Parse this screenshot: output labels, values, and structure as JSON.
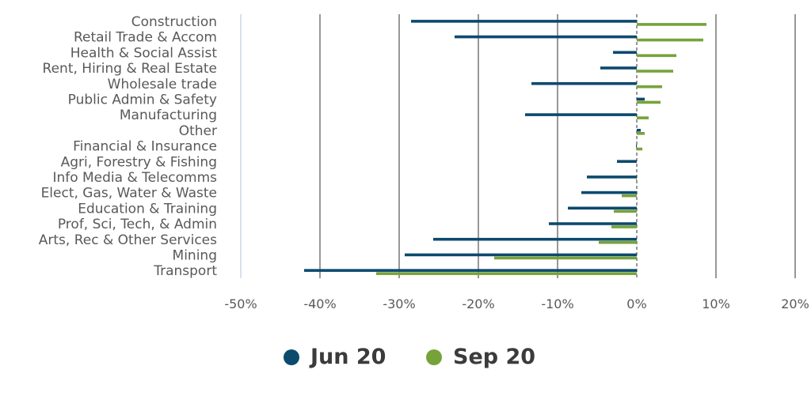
{
  "chart_data": {
    "type": "bar",
    "orientation": "horizontal",
    "categories": [
      "Construction",
      "Retail Trade & Accom",
      "Health & Social Assist",
      "Rent, Hiring & Real Estate",
      "Wholesale trade",
      "Public Admin & Safety",
      "Manufacturing",
      "Other",
      "Financial & Insurance",
      "Agri, Forestry & Fishing",
      "Info Media & Telecomms",
      "Elect, Gas, Water & Waste",
      "Education & Training",
      "Prof, Sci, Tech, & Admin",
      "Arts, Rec & Other Services",
      "Mining",
      "Transport"
    ],
    "series": [
      {
        "name": "Jun 20",
        "color": "#0c4a6e",
        "values": [
          -28.5,
          -23.0,
          -3.0,
          -4.6,
          -13.3,
          1.0,
          -14.1,
          0.5,
          -0.1,
          -2.5,
          -6.3,
          -7.0,
          -8.7,
          -11.1,
          -25.7,
          -29.3,
          -42.0
        ]
      },
      {
        "name": "Sep 20",
        "color": "#76a339",
        "values": [
          8.8,
          8.4,
          5.0,
          4.6,
          3.2,
          3.0,
          1.5,
          1.0,
          0.7,
          0.0,
          -0.1,
          -1.9,
          -2.9,
          -3.2,
          -4.8,
          -18.0,
          -32.9
        ]
      }
    ],
    "x_ticks": [
      "-50%",
      "-40%",
      "-30%",
      "-20%",
      "-10%",
      "0%",
      "10%",
      "20%"
    ],
    "xlim": [
      -50,
      20
    ],
    "grid": "vertical",
    "legend_position": "bottom"
  }
}
